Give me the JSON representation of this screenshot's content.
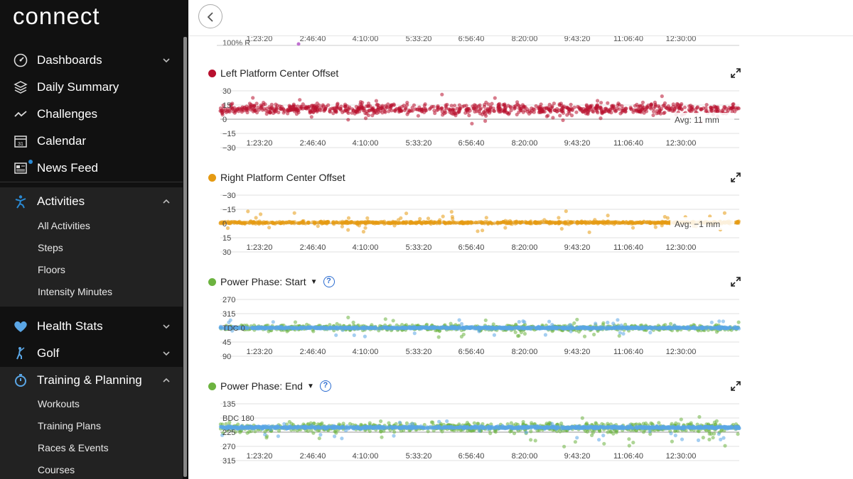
{
  "app": {
    "logo": "connect"
  },
  "sidebar": {
    "items": [
      {
        "label": "Dashboards",
        "icon": "gauge-icon"
      },
      {
        "label": "Daily Summary",
        "icon": "layers-icon"
      },
      {
        "label": "Challenges",
        "icon": "challenge-icon"
      },
      {
        "label": "Calendar",
        "icon": "calendar-icon",
        "icon_text": "31"
      },
      {
        "label": "News Feed",
        "icon": "newspaper-icon"
      }
    ],
    "activities": {
      "label": "Activities",
      "icon": "person-icon",
      "sub": [
        "All Activities",
        "Steps",
        "Floors",
        "Intensity Minutes"
      ]
    },
    "health": {
      "label": "Health Stats",
      "icon": "heart-icon"
    },
    "golf": {
      "label": "Golf",
      "icon": "golfer-icon"
    },
    "training": {
      "label": "Training & Planning",
      "icon": "stopwatch-icon",
      "sub": [
        "Workouts",
        "Training Plans",
        "Races & Events",
        "Courses"
      ]
    },
    "colors": {
      "active_icon": "#2a8ad4",
      "dot": "#2a8ad4"
    }
  },
  "top_chart": {
    "xticks": [
      "1:23:20",
      "2:46:40",
      "4:10:00",
      "5:33:20",
      "6:56:40",
      "8:20:00",
      "9:43:20",
      "11:06:40",
      "12:30:00"
    ],
    "ylabel_partial": "100% R"
  },
  "charts": [
    {
      "title": "Left Platform Center Offset",
      "dot_color": "#b8102e",
      "yticks": [
        "30",
        "15",
        "0",
        "−15",
        "−30"
      ],
      "avg_label": "Avg: 11 mm",
      "has_help": false
    },
    {
      "title": "Right Platform Center Offset",
      "dot_color": "#e59a12",
      "yticks": [
        "−30",
        "−15",
        "0",
        "15",
        "30"
      ],
      "avg_label": "Avg: −1 mm",
      "has_help": false
    },
    {
      "title": "Power Phase: Start",
      "dot_color": "#6cb33f",
      "yticks": [
        "270",
        "315",
        "TDC 0",
        "45",
        "90"
      ],
      "avg_label": "",
      "has_help": true,
      "help_text": "?"
    },
    {
      "title": "Power Phase: End",
      "dot_color": "#6cb33f",
      "yticks": [
        "135",
        "BDC 180",
        "225",
        "270",
        "315"
      ],
      "avg_label": "",
      "has_help": true,
      "help_text": "?"
    }
  ],
  "chart_data": [
    {
      "type": "scatter",
      "title": "Left Platform Center Offset",
      "xlabel": "",
      "ylabel": "",
      "x_ticks": [
        "1:23:20",
        "2:46:40",
        "4:10:00",
        "5:33:20",
        "6:56:40",
        "8:20:00",
        "9:43:20",
        "11:06:40",
        "12:30:00"
      ],
      "ylim": [
        -30,
        30
      ],
      "y_ticks": [
        30,
        15,
        0,
        -15,
        -30
      ],
      "series": [
        {
          "color": "#b8102e",
          "center": 11,
          "spread": 8
        }
      ],
      "annotation": "Avg: 11 mm"
    },
    {
      "type": "scatter",
      "title": "Right Platform Center Offset",
      "xlabel": "",
      "ylabel": "",
      "x_ticks": [
        "1:23:20",
        "2:46:40",
        "4:10:00",
        "5:33:20",
        "6:56:40",
        "8:20:00",
        "9:43:20",
        "11:06:40",
        "12:30:00"
      ],
      "ylim": [
        30,
        -30
      ],
      "y_ticks": [
        -30,
        -15,
        0,
        15,
        30
      ],
      "series": [
        {
          "color": "#e59a12",
          "center": -1,
          "spread": 2
        }
      ],
      "annotation": "Avg: −1 mm"
    },
    {
      "type": "scatter",
      "title": "Power Phase: Start",
      "xlabel": "",
      "ylabel": "",
      "x_ticks": [
        "1:23:20",
        "2:46:40",
        "4:10:00",
        "5:33:20",
        "6:56:40",
        "8:20:00",
        "9:43:20",
        "11:06:40",
        "12:30:00"
      ],
      "y_ticks": [
        "270",
        "315",
        "TDC 0",
        "45",
        "90"
      ],
      "series": [
        {
          "color": "#6cb33f",
          "center": 0,
          "spread": 12
        },
        {
          "color": "#5aa6e6",
          "center": 0,
          "spread": 5
        }
      ]
    },
    {
      "type": "scatter",
      "title": "Power Phase: End",
      "xlabel": "",
      "ylabel": "",
      "x_ticks": [
        "1:23:20",
        "2:46:40",
        "4:10:00",
        "5:33:20",
        "6:56:40",
        "8:20:00",
        "9:43:20",
        "11:06:40",
        "12:30:00"
      ],
      "y_ticks": [
        "135",
        "BDC 180",
        "225",
        "270",
        "315"
      ],
      "series": [
        {
          "color": "#6cb33f",
          "center": 210,
          "spread": 20
        },
        {
          "color": "#5aa6e6",
          "center": 210,
          "spread": 6
        }
      ]
    }
  ]
}
